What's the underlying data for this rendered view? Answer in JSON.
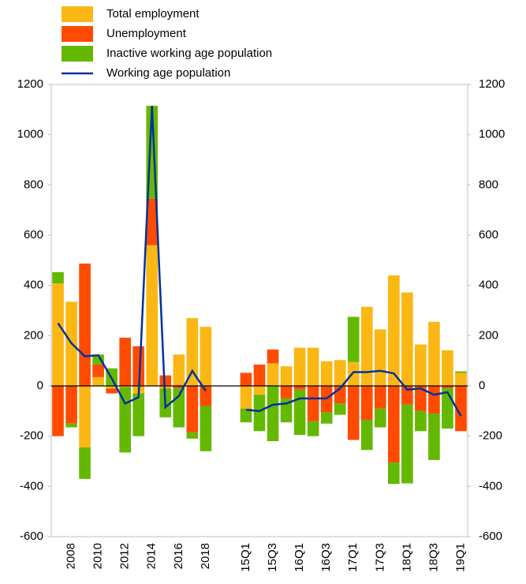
{
  "chart_data": {
    "type": "bar",
    "stacked": true,
    "categories": [
      null,
      "2008",
      null,
      "2010",
      null,
      "2012",
      null,
      "2014",
      null,
      "2016",
      null,
      "2018",
      null,
      null,
      "15Q1",
      null,
      "15Q3",
      null,
      "16Q1",
      null,
      "16Q3",
      null,
      "17Q1",
      null,
      "17Q3",
      null,
      "18Q1",
      null,
      "18Q3",
      null,
      "19Q1"
    ],
    "series": [
      {
        "name": "Total employment",
        "color": "#fbb714",
        "values": [
          408,
          335,
          -245,
          35,
          -10,
          -5,
          -30,
          560,
          -10,
          125,
          270,
          235,
          null,
          null,
          -90,
          -35,
          90,
          78,
          152,
          152,
          98,
          103,
          95,
          315,
          225,
          440,
          372,
          165,
          255,
          142,
          52
        ]
      },
      {
        "name": "Unemployment",
        "color": "#ff4b00",
        "values": [
          -200,
          -150,
          487,
          50,
          -20,
          192,
          158,
          185,
          42,
          -10,
          -185,
          -80,
          null,
          null,
          52,
          85,
          55,
          -50,
          -15,
          -140,
          -105,
          -70,
          -215,
          -135,
          -90,
          -305,
          -75,
          -100,
          -110,
          -10,
          -180
        ]
      },
      {
        "name": "Inactive working age population",
        "color": "#65b800",
        "values": [
          45,
          -15,
          -125,
          40,
          70,
          -260,
          -170,
          370,
          -115,
          -155,
          -25,
          -180,
          null,
          null,
          -55,
          -145,
          -220,
          -95,
          -180,
          -60,
          -45,
          -45,
          180,
          -120,
          -75,
          -85,
          -313,
          -80,
          -185,
          -160,
          6
        ]
      },
      {
        "name": "Working age population",
        "color": "#003299",
        "kind": "line",
        "values": [
          250,
          170,
          118,
          122,
          30,
          -70,
          -45,
          1115,
          -85,
          -40,
          60,
          -20,
          null,
          null,
          -95,
          -100,
          -75,
          -70,
          -50,
          -50,
          -50,
          -10,
          55,
          55,
          60,
          50,
          -15,
          -10,
          -35,
          -25,
          -120
        ]
      }
    ],
    "ylim": [
      -600,
      1200
    ],
    "yticks": [
      -600,
      -400,
      -200,
      0,
      200,
      400,
      600,
      800,
      1000,
      1200
    ],
    "y2lim": [
      -600,
      1200
    ],
    "y2ticks": [
      -600,
      -400,
      -200,
      0,
      200,
      400,
      600,
      800,
      1000,
      1200
    ]
  }
}
